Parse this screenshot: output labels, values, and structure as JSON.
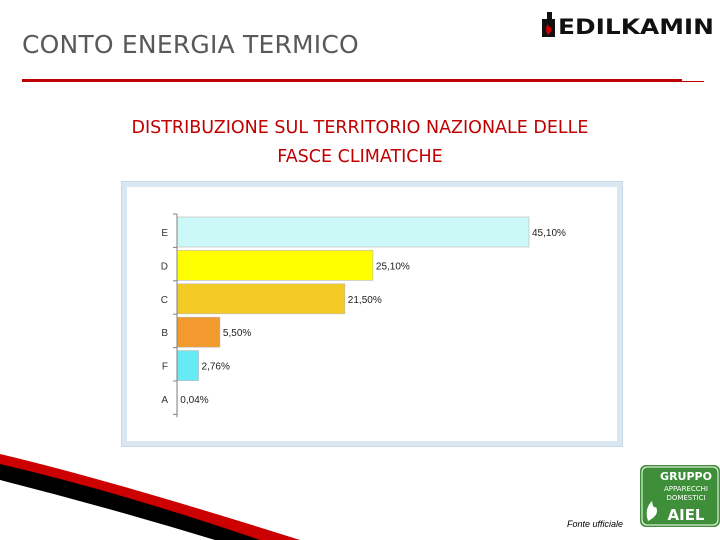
{
  "header": {
    "title": "CONTO ENERGIA TERMICO",
    "brand": "EDILKAMIN",
    "accent_color": "#c00000"
  },
  "slide": {
    "title_line1": "DISTRIBUZIONE SUL TERRITORIO NAZIONALE DELLE",
    "title_line2": "FASCE CLIMATICHE"
  },
  "chart_data": {
    "type": "bar",
    "orientation": "horizontal",
    "categories": [
      "E",
      "D",
      "C",
      "B",
      "F",
      "A"
    ],
    "values": [
      45.1,
      25.1,
      21.5,
      5.5,
      2.76,
      0.04
    ],
    "value_labels": [
      "45,10%",
      "25,10%",
      "21,50%",
      "5,50%",
      "2,76%",
      "0,04%"
    ],
    "bar_colors": [
      "#ccf8f8",
      "#ffff00",
      "#f4ca24",
      "#f29a2e",
      "#66eaf4",
      "#ffffff"
    ],
    "xlim": [
      0,
      45.1
    ],
    "grid": false,
    "title": "",
    "xlabel": "",
    "ylabel": ""
  },
  "footer": {
    "source": "Fonte ufficiale",
    "badge_line1": "GRUPPO",
    "badge_line2": "APPARECCHI",
    "badge_line3": "DOMESTICI",
    "badge_brand": "AIEL"
  }
}
